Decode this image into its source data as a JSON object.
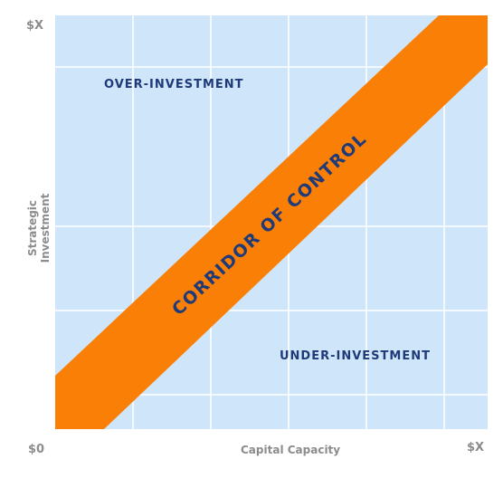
{
  "diagram": {
    "x_axis": {
      "title": "Capital Capacity",
      "min_label": "$0",
      "max_label": "$X"
    },
    "y_axis": {
      "title": "Strategic Investment",
      "max_label": "$X"
    },
    "regions": {
      "over": "OVER-INVESTMENT",
      "under": "UNDER-INVESTMENT",
      "corridor": "CORRIDOR OF CONTROL"
    },
    "colors": {
      "plot_background": "#cfe6fa",
      "grid": "#ffffff",
      "corridor": "#fa7f07",
      "label_text": "#1f3a78",
      "axis_text": "#8c8c8c"
    }
  }
}
